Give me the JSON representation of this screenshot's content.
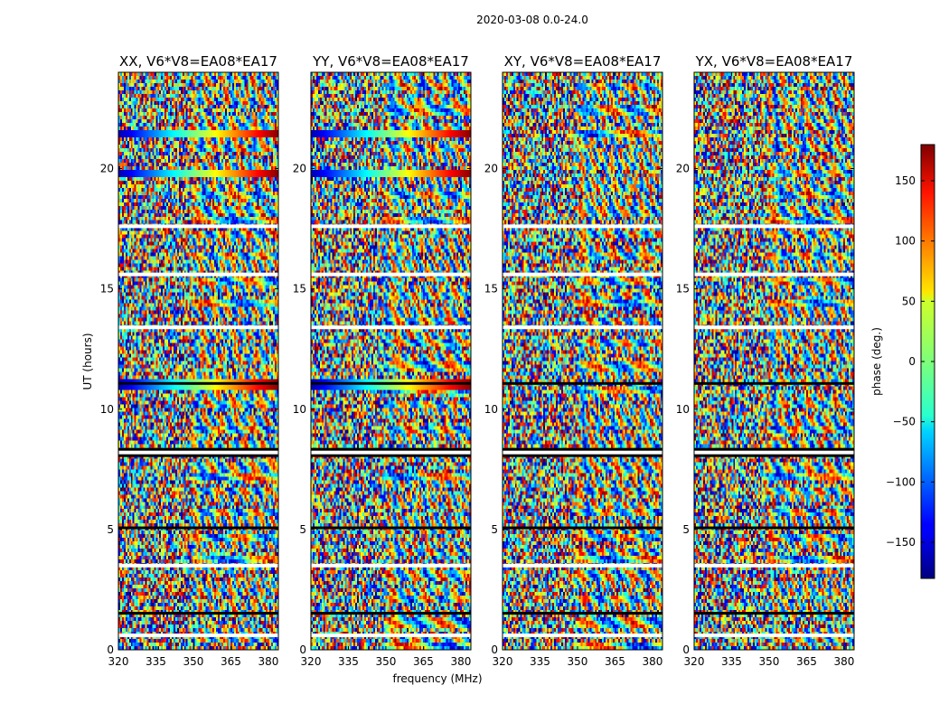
{
  "figure": {
    "suptitle": "2020-03-08 0.0-24.0"
  },
  "chart_data": {
    "type": "heatmap",
    "title": "2020-03-08 0.0-24.0",
    "xlabel": "frequency (MHz)",
    "ylabel": "UT (hours)",
    "xlim": [
      320,
      384
    ],
    "ylim": [
      0,
      24
    ],
    "xticks": [
      320,
      335,
      350,
      365,
      380
    ],
    "yticks": [
      0,
      5,
      10,
      15,
      20
    ],
    "panels": [
      {
        "title": "XX, V6*V8=EA08*EA17"
      },
      {
        "title": "YY, V6*V8=EA08*EA17"
      },
      {
        "title": "XY, V6*V8=EA08*EA17"
      },
      {
        "title": "YX, V6*V8=EA08*EA17"
      }
    ],
    "colorbar": {
      "label": "phase (deg.)",
      "range": [
        -180,
        180
      ],
      "ticks": [
        -150,
        -100,
        -50,
        0,
        50,
        100,
        150
      ],
      "colormap": "jet"
    },
    "flagged_time_bands": [
      1.5,
      5.05,
      8.2,
      11.05
    ],
    "white_gap_bands": [
      8.3,
      17.6,
      0.6,
      3.5,
      13.4,
      15.6
    ]
  }
}
